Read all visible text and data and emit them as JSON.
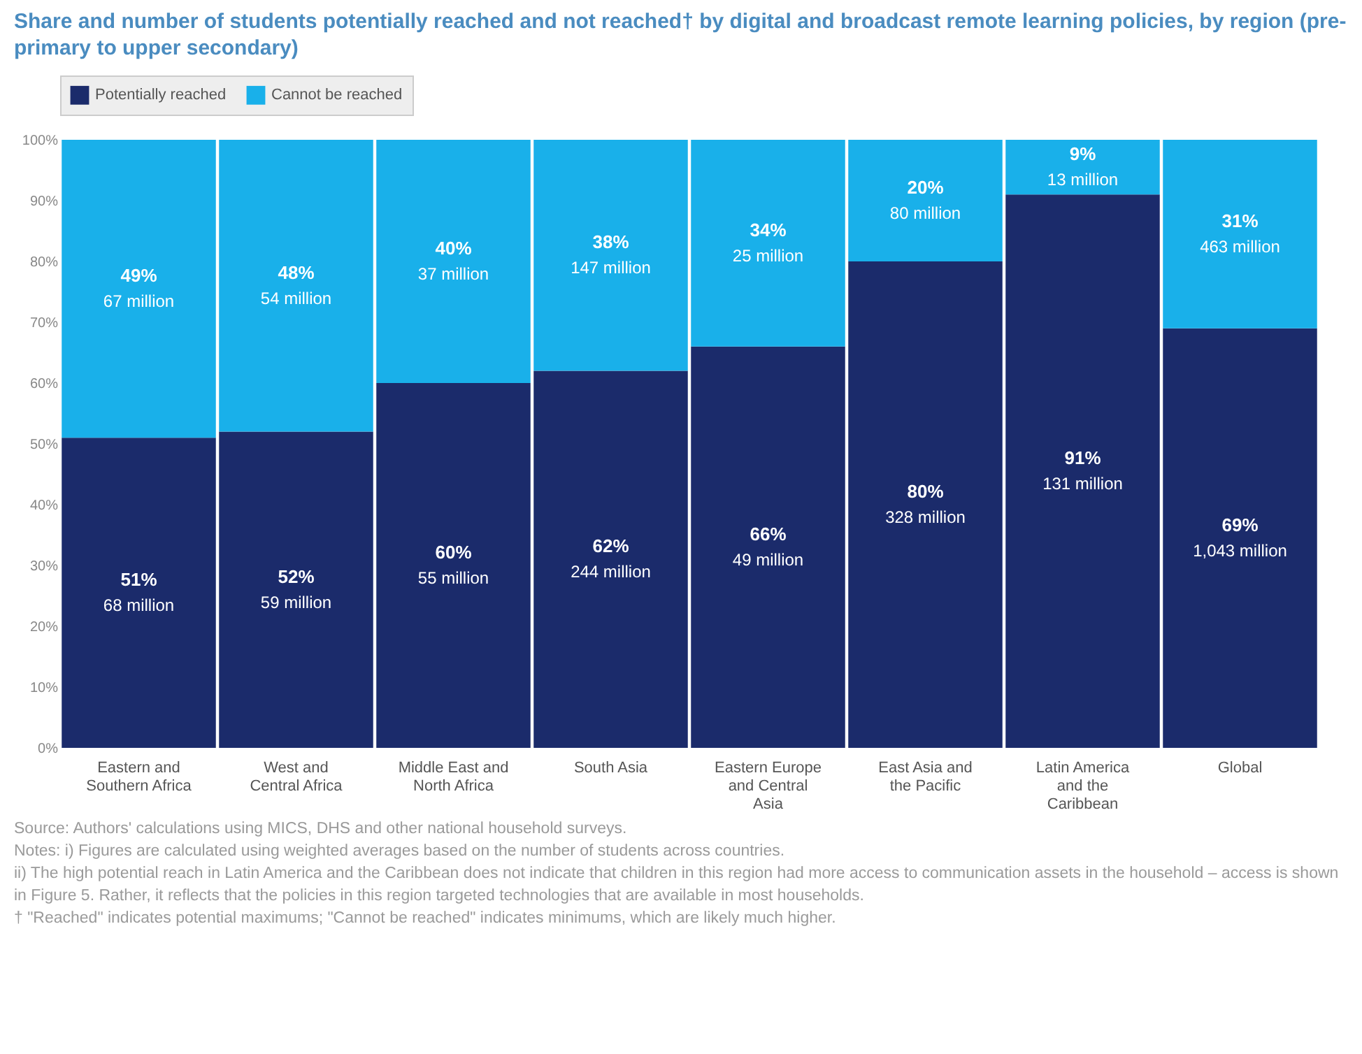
{
  "chart_data": {
    "type": "bar",
    "stacked": true,
    "title": "Share and number of students potentially reached and not reached† by digital and broadcast remote learning policies, by region (pre-primary to upper secondary)",
    "categories": [
      "Eastern and Southern Africa",
      "West and Central Africa",
      "Middle East and North Africa",
      "South Asia",
      "Eastern Europe and Central Asia",
      "East Asia and the Pacific",
      "Latin America and the Caribbean",
      "Global"
    ],
    "series": [
      {
        "name": "Potentially reached",
        "color": "#1b2b6b",
        "values": [
          51,
          52,
          60,
          62,
          66,
          80,
          91,
          69
        ],
        "value_labels": [
          "51%\n68 million",
          "52%\n59 million",
          "60%\n55 million",
          "62%\n244 million",
          "66%\n49 million",
          "80%\n328 million",
          "91%\n131 million",
          "69%\n1,043 million"
        ]
      },
      {
        "name": "Cannot be reached",
        "color": "#19b0ea",
        "values": [
          49,
          48,
          40,
          38,
          34,
          20,
          9,
          31
        ],
        "value_labels": [
          "49%\n67 million",
          "48%\n54 million",
          "40%\n37 million",
          "38%\n147 million",
          "34%\n25 million",
          "20%\n80 million",
          "9%\n13 million",
          "31%\n463 million"
        ]
      }
    ],
    "ylim": [
      0,
      100
    ],
    "yticks": [
      {
        "value": 0,
        "label": "0%"
      },
      {
        "value": 10,
        "label": "10%"
      },
      {
        "value": 20,
        "label": "20%"
      },
      {
        "value": 30,
        "label": "30%"
      },
      {
        "value": 40,
        "label": "40%"
      },
      {
        "value": 50,
        "label": "50%"
      },
      {
        "value": 60,
        "label": "60%"
      },
      {
        "value": 70,
        "label": "70%"
      },
      {
        "value": 80,
        "label": "80%"
      },
      {
        "value": 90,
        "label": "90%"
      },
      {
        "value": 100,
        "label": "100%"
      }
    ],
    "legend": "top",
    "annotations": [
      "Source: Authors' calculations using MICS, DHS and other national household surveys.",
      "Notes: i) Figures are calculated using weighted averages based on the number of students across countries.",
      "ii) The high potential reach in Latin America and the Caribbean does not indicate that children in this region had more access to communication assets in the household – access is shown in Figure 5. Rather, it reflects that the policies in this region targeted technologies that are available in most households.",
      "† \"Reached\" indicates potential maximums; \"Cannot be reached\" indicates minimums, which are likely much higher."
    ]
  }
}
